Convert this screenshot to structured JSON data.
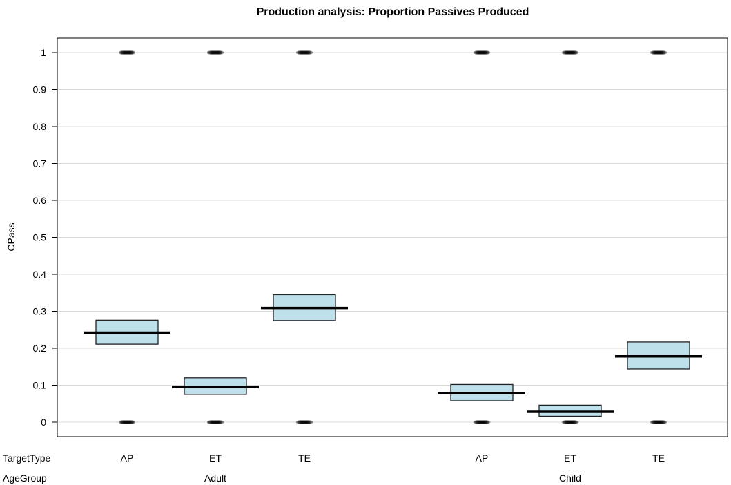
{
  "chart_data": {
    "type": "pirateplot",
    "title": "Production analysis: Proportion Passives Produced",
    "ylabel": "CPass",
    "ylim": [
      0,
      1
    ],
    "yticks": [
      "0",
      "0.1",
      "0.2",
      "0.3",
      "0.4",
      "0.5",
      "0.6",
      "0.7",
      "0.8",
      "0.9",
      "1"
    ],
    "grid": true,
    "factor_labels": [
      "TargetType",
      "AgeGroup"
    ],
    "groups": [
      {
        "name": "Adult",
        "categories": [
          {
            "target": "AP",
            "mean": 0.242,
            "ci_low": 0.211,
            "ci_high": 0.276
          },
          {
            "target": "ET",
            "mean": 0.095,
            "ci_low": 0.075,
            "ci_high": 0.12
          },
          {
            "target": "TE",
            "mean": 0.309,
            "ci_low": 0.275,
            "ci_high": 0.345
          }
        ]
      },
      {
        "name": "Child",
        "categories": [
          {
            "target": "AP",
            "mean": 0.078,
            "ci_low": 0.058,
            "ci_high": 0.102
          },
          {
            "target": "ET",
            "mean": 0.028,
            "ci_low": 0.016,
            "ci_high": 0.046
          },
          {
            "target": "TE",
            "mean": 0.178,
            "ci_low": 0.144,
            "ci_high": 0.217
          }
        ]
      }
    ],
    "fill_color": "#bde0ea",
    "point_color": "#000000"
  }
}
